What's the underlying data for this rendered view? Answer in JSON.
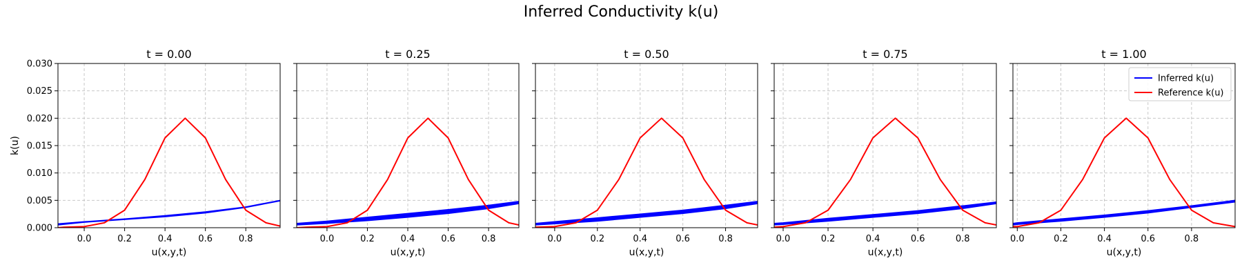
{
  "figure": {
    "suptitle": "Inferred Conductivity k(u)"
  },
  "legend": {
    "placement": "upper-right of last panel",
    "entries": [
      {
        "label": "Inferred k(u)",
        "color": "#0000ff"
      },
      {
        "label": "Reference k(u)",
        "color": "#ff0000"
      }
    ]
  },
  "chart_data": [
    {
      "type": "line",
      "title": "t = 0.00",
      "xlabel": "u(x,y,t)",
      "ylabel": "k(u)",
      "xlim": [
        -0.13,
        0.97
      ],
      "ylim": [
        0,
        0.03
      ],
      "xticks": [
        "0.0",
        "0.2",
        "0.4",
        "0.6",
        "0.8"
      ],
      "yticks": [
        "0.000",
        "0.005",
        "0.010",
        "0.015",
        "0.020",
        "0.025",
        "0.030"
      ],
      "grid": true,
      "series": [
        {
          "name": "Inferred k(u)",
          "color": "#0000ff",
          "band": [
            [
              -0.13,
              0.0005,
              0.0007
            ],
            [
              0.0,
              0.001,
              0.0011
            ],
            [
              0.2,
              0.0015,
              0.0016
            ],
            [
              0.4,
              0.002,
              0.0022
            ],
            [
              0.6,
              0.0027,
              0.0029
            ],
            [
              0.8,
              0.0037,
              0.0038
            ],
            [
              0.97,
              0.0049,
              0.005
            ]
          ]
        },
        {
          "name": "Reference k(u)",
          "color": "#ff0000",
          "x": [
            -0.13,
            -0.1,
            0.0,
            0.1,
            0.2,
            0.3,
            0.4,
            0.5,
            0.6,
            0.7,
            0.8,
            0.9,
            0.97
          ],
          "y": [
            0.0,
            0.0001,
            0.0002,
            0.0009,
            0.0032,
            0.0088,
            0.0164,
            0.02,
            0.0164,
            0.0088,
            0.0032,
            0.0009,
            0.0003
          ]
        }
      ]
    },
    {
      "type": "line",
      "title": "t = 0.25",
      "xlabel": "u(x,y,t)",
      "xlim": [
        -0.15,
        0.95
      ],
      "ylim": [
        0,
        0.03
      ],
      "xticks": [
        "0.0",
        "0.2",
        "0.4",
        "0.6",
        "0.8"
      ],
      "grid": true,
      "series": [
        {
          "name": "Inferred k(u)",
          "color": "#0000ff",
          "band": [
            [
              -0.15,
              0.0005,
              0.0008
            ],
            [
              0.0,
              0.0008,
              0.0012
            ],
            [
              0.2,
              0.0013,
              0.0019
            ],
            [
              0.4,
              0.0019,
              0.0026
            ],
            [
              0.6,
              0.0026,
              0.0033
            ],
            [
              0.8,
              0.0035,
              0.0041
            ],
            [
              0.95,
              0.0044,
              0.0048
            ]
          ]
        },
        {
          "name": "Reference k(u)",
          "color": "#ff0000",
          "x": [
            -0.15,
            -0.1,
            0.0,
            0.1,
            0.2,
            0.3,
            0.4,
            0.5,
            0.6,
            0.7,
            0.8,
            0.9,
            0.95
          ],
          "y": [
            0.0,
            0.0001,
            0.0002,
            0.0009,
            0.0032,
            0.0088,
            0.0164,
            0.02,
            0.0164,
            0.0088,
            0.0032,
            0.0009,
            0.0005
          ]
        }
      ]
    },
    {
      "type": "line",
      "title": "t = 0.50",
      "xlabel": "u(x,y,t)",
      "xlim": [
        -0.09,
        0.95
      ],
      "ylim": [
        0,
        0.03
      ],
      "xticks": [
        "0.0",
        "0.2",
        "0.4",
        "0.6",
        "0.8"
      ],
      "grid": true,
      "series": [
        {
          "name": "Inferred k(u)",
          "color": "#0000ff",
          "band": [
            [
              -0.09,
              0.0005,
              0.0008
            ],
            [
              0.0,
              0.0007,
              0.0011
            ],
            [
              0.2,
              0.0012,
              0.0018
            ],
            [
              0.4,
              0.0019,
              0.0025
            ],
            [
              0.6,
              0.0026,
              0.0032
            ],
            [
              0.8,
              0.0035,
              0.0041
            ],
            [
              0.95,
              0.0044,
              0.0048
            ]
          ]
        },
        {
          "name": "Reference k(u)",
          "color": "#ff0000",
          "x": [
            -0.09,
            0.0,
            0.1,
            0.2,
            0.3,
            0.4,
            0.5,
            0.6,
            0.7,
            0.8,
            0.9,
            0.95
          ],
          "y": [
            0.0001,
            0.0002,
            0.0009,
            0.0032,
            0.0088,
            0.0164,
            0.02,
            0.0164,
            0.0088,
            0.0032,
            0.0009,
            0.0005
          ]
        }
      ]
    },
    {
      "type": "line",
      "title": "t = 0.75",
      "xlabel": "u(x,y,t)",
      "xlim": [
        -0.04,
        0.95
      ],
      "ylim": [
        0,
        0.03
      ],
      "xticks": [
        "0.0",
        "0.2",
        "0.4",
        "0.6",
        "0.8"
      ],
      "grid": true,
      "series": [
        {
          "name": "Inferred k(u)",
          "color": "#0000ff",
          "band": [
            [
              -0.04,
              0.0005,
              0.0008
            ],
            [
              0.0,
              0.0006,
              0.0009
            ],
            [
              0.2,
              0.0012,
              0.0017
            ],
            [
              0.4,
              0.0019,
              0.0024
            ],
            [
              0.6,
              0.0026,
              0.0031
            ],
            [
              0.8,
              0.0035,
              0.004
            ],
            [
              0.95,
              0.0044,
              0.0047
            ]
          ]
        },
        {
          "name": "Reference k(u)",
          "color": "#ff0000",
          "x": [
            -0.04,
            0.0,
            0.1,
            0.2,
            0.3,
            0.4,
            0.5,
            0.6,
            0.7,
            0.8,
            0.9,
            0.95
          ],
          "y": [
            0.0001,
            0.0002,
            0.0009,
            0.0032,
            0.0088,
            0.0164,
            0.02,
            0.0164,
            0.0088,
            0.0032,
            0.0009,
            0.0005
          ]
        }
      ]
    },
    {
      "type": "line",
      "title": "t = 1.00",
      "xlabel": "u(x,y,t)",
      "xlim": [
        -0.02,
        1.0
      ],
      "ylim": [
        0,
        0.03
      ],
      "xticks": [
        "0.0",
        "0.2",
        "0.4",
        "0.6",
        "0.8"
      ],
      "grid": true,
      "series": [
        {
          "name": "Inferred k(u)",
          "color": "#0000ff",
          "band": [
            [
              -0.02,
              0.0005,
              0.0008
            ],
            [
              0.0,
              0.0006,
              0.0009
            ],
            [
              0.2,
              0.0012,
              0.0016
            ],
            [
              0.4,
              0.0019,
              0.0023
            ],
            [
              0.6,
              0.0027,
              0.0031
            ],
            [
              0.8,
              0.0037,
              0.004
            ],
            [
              1.0,
              0.0047,
              0.005
            ]
          ]
        },
        {
          "name": "Reference k(u)",
          "color": "#ff0000",
          "x": [
            -0.02,
            0.0,
            0.1,
            0.2,
            0.3,
            0.4,
            0.5,
            0.6,
            0.7,
            0.8,
            0.9,
            1.0
          ],
          "y": [
            0.0002,
            0.0002,
            0.0009,
            0.0032,
            0.0088,
            0.0164,
            0.02,
            0.0164,
            0.0088,
            0.0032,
            0.0009,
            0.0002
          ]
        }
      ]
    }
  ]
}
